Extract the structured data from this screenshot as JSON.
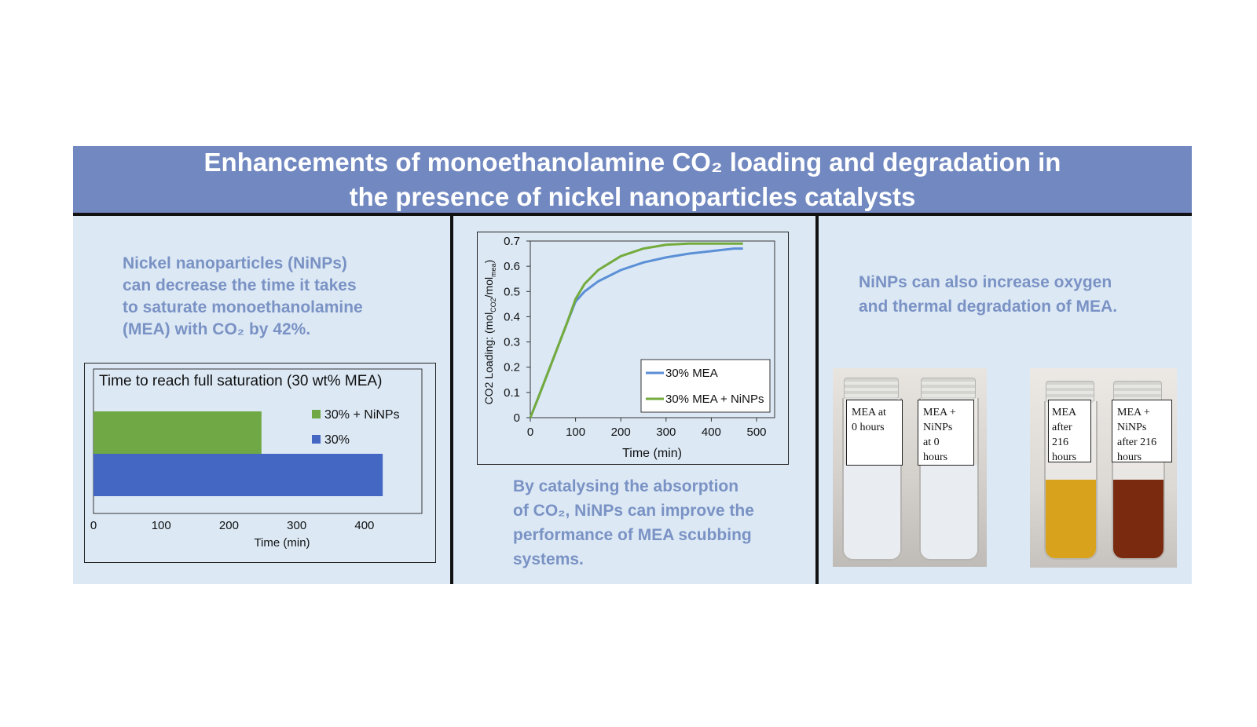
{
  "title": {
    "line1": "Enhancements of monoethanolamine CO₂ loading and degradation in",
    "line2": "the presence of nickel nanoparticles catalysts"
  },
  "panel_left": {
    "text_lines": [
      "Nickel nanoparticles (NiNPs)",
      "can decrease the time it takes",
      "to saturate monoethanolamine",
      "(MEA) with CO₂ by 42%."
    ]
  },
  "panel_middle": {
    "text_lines": [
      "By catalysing the absorption",
      "of CO₂, NiNPs can improve the",
      "performance of MEA scubbing",
      "systems."
    ]
  },
  "panel_right": {
    "text_lines": [
      "NiNPs can also increase oxygen",
      "and thermal degradation of MEA."
    ],
    "photo_left_labels": [
      [
        "MEA at",
        "0 hours"
      ],
      [
        "MEA +",
        "NiNPs",
        "at 0",
        "hours"
      ]
    ],
    "photo_right_labels": [
      [
        "MEA",
        "after",
        "216",
        "hours"
      ],
      [
        "MEA +",
        "NiNPs",
        "after 216",
        "hours"
      ]
    ],
    "liquid_colors": {
      "clear": "#e9edf1",
      "amber": "#d9a21c",
      "dark_red": "#7a2a0e"
    }
  },
  "chart_data": [
    {
      "type": "bar",
      "orientation": "horizontal",
      "title": "Time to reach full saturation (30 wt% MEA)",
      "xlabel": "Time (min)",
      "ylabel": "",
      "xlim": [
        0,
        450
      ],
      "xticks": [
        0,
        100,
        200,
        300,
        400
      ],
      "series": [
        {
          "name": "30% + NiNPs",
          "values": [
            248
          ],
          "color": "#70a845"
        },
        {
          "name": "30%",
          "values": [
            427
          ],
          "color": "#4467c4"
        }
      ],
      "legend": "top-right",
      "grid": false
    },
    {
      "type": "line",
      "title": "",
      "xlabel": "Time (min)",
      "ylabel_parts": [
        "CO2 Loading: (mol",
        "CO2",
        "/mol",
        "mea",
        ")"
      ],
      "xlim": [
        0,
        500
      ],
      "ylim": [
        0,
        0.7
      ],
      "xticks": [
        0,
        100,
        200,
        300,
        400,
        500
      ],
      "yticks": [
        0,
        0.1,
        0.2,
        0.3,
        0.4,
        0.5,
        0.6,
        0.7
      ],
      "series": [
        {
          "name": "30% MEA",
          "color": "#5b8fd6",
          "x": [
            0,
            20,
            50,
            80,
            100,
            120,
            150,
            200,
            250,
            300,
            350,
            400,
            450,
            470
          ],
          "y": [
            0,
            0.09,
            0.23,
            0.37,
            0.46,
            0.5,
            0.54,
            0.585,
            0.615,
            0.635,
            0.65,
            0.66,
            0.67,
            0.67
          ]
        },
        {
          "name": "30% MEA + NiNPs",
          "color": "#74ab3d",
          "x": [
            0,
            20,
            50,
            80,
            100,
            120,
            150,
            200,
            250,
            300,
            350,
            400,
            450,
            470
          ],
          "y": [
            0,
            0.09,
            0.23,
            0.37,
            0.47,
            0.53,
            0.585,
            0.64,
            0.67,
            0.685,
            0.69,
            0.69,
            0.69,
            0.69
          ]
        }
      ],
      "legend": "bottom-right",
      "grid": false
    }
  ]
}
